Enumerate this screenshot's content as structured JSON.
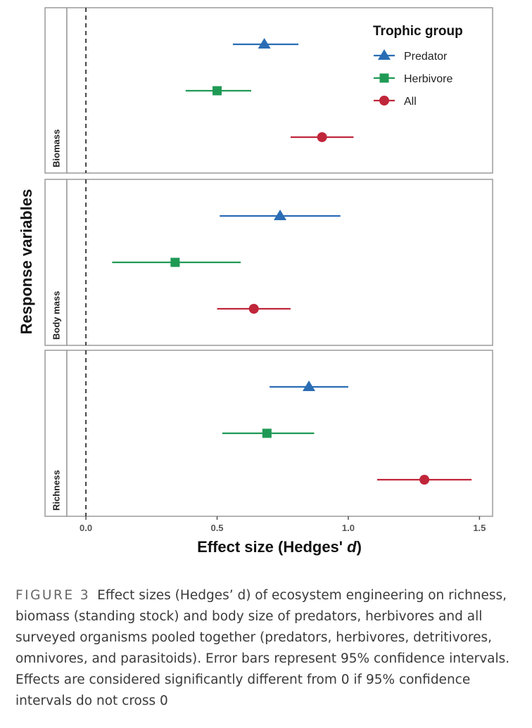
{
  "chart_data": {
    "type": "scatter",
    "subtype": "forest-plot-with-95ci",
    "xlabel": "Effect size (Hedges' d)",
    "ylabel": "Response variables",
    "xlim": [
      -0.07,
      1.55
    ],
    "xticks": [
      0.0,
      0.5,
      1.0,
      1.5
    ],
    "xtick_labels": [
      "0.0",
      "0.5",
      "1.0",
      "1.5"
    ],
    "reference_line": {
      "x": 0,
      "style": "dashed"
    },
    "grid": false,
    "legend": {
      "title": "Trophic group",
      "placement": "top-right"
    },
    "series": [
      {
        "name": "Predator",
        "color": "#2a6db5",
        "marker": "triangle"
      },
      {
        "name": "Herbivore",
        "color": "#1f9a55",
        "marker": "square"
      },
      {
        "name": "All",
        "color": "#c0263a",
        "marker": "circle"
      }
    ],
    "panels": [
      {
        "label": "Biomass",
        "points": [
          {
            "group": "Predator",
            "estimate": 0.68,
            "ci": [
              0.56,
              0.81
            ]
          },
          {
            "group": "Herbivore",
            "estimate": 0.5,
            "ci": [
              0.38,
              0.63
            ]
          },
          {
            "group": "All",
            "estimate": 0.9,
            "ci": [
              0.78,
              1.02
            ]
          }
        ]
      },
      {
        "label": "Body mass",
        "points": [
          {
            "group": "Predator",
            "estimate": 0.74,
            "ci": [
              0.51,
              0.97
            ]
          },
          {
            "group": "Herbivore",
            "estimate": 0.34,
            "ci": [
              0.1,
              0.59
            ]
          },
          {
            "group": "All",
            "estimate": 0.64,
            "ci": [
              0.5,
              0.78
            ]
          }
        ]
      },
      {
        "label": "Richness",
        "points": [
          {
            "group": "Predator",
            "estimate": 0.85,
            "ci": [
              0.7,
              1.0
            ]
          },
          {
            "group": "Herbivore",
            "estimate": 0.69,
            "ci": [
              0.52,
              0.87
            ]
          },
          {
            "group": "All",
            "estimate": 1.29,
            "ci": [
              1.11,
              1.47
            ]
          }
        ]
      }
    ]
  },
  "caption": {
    "label": "FIGURE 3",
    "text": "Effect sizes (Hedges’ d) of ecosystem engineering on richness, biomass (standing stock) and body size of predators, herbivores and all surveyed organisms pooled together (predators, herbivores, detritivores, omnivores, and parasitoids). Error bars represent 95% confidence intervals. Effects are considered significantly different from 0 if 95% confidence intervals do not cross 0"
  }
}
